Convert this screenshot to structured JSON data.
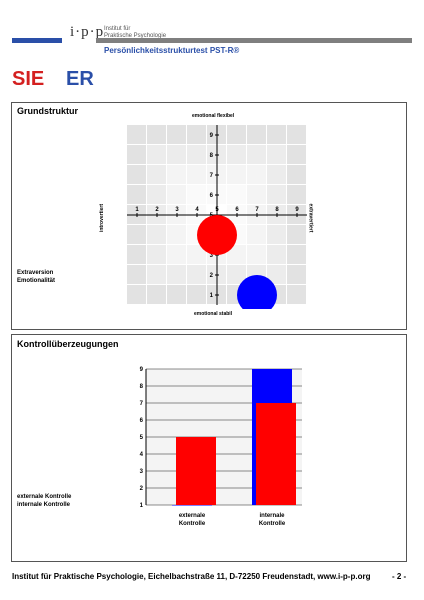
{
  "header": {
    "logo": "i·p·p",
    "logo_line1": "Institut für",
    "logo_line2": "Praktische Psychologie",
    "subtitle": "Persönlichkeitsstrukturtest PST-R®",
    "brand_blue": "#2a4fa8",
    "brand_gray": "#7f7f7f"
  },
  "heading": {
    "sie": "SIE",
    "er": "ER",
    "sie_color": "#d42020",
    "er_color": "#2a4fa8"
  },
  "grundstruktur": {
    "title": "Grundstruktur",
    "top_label": "emotional flexibel",
    "bottom_label": "emotional stabil",
    "left_label": "introvertiert",
    "right_label": "extravertiert",
    "legend_1": "Extraversion",
    "legend_2": "Emotionalität"
  },
  "kontrolle": {
    "title": "Kontrollüberzeugungen",
    "legend_1": "externale Kontrolle",
    "legend_2": "internale Kontrolle"
  },
  "chart_data": [
    {
      "type": "scatter",
      "x_ticks": [
        1,
        2,
        3,
        4,
        5,
        6,
        7,
        8,
        9
      ],
      "y_ticks": [
        1,
        2,
        3,
        4,
        5,
        6,
        7,
        8,
        9
      ],
      "xlim": [
        1,
        9
      ],
      "ylim": [
        1,
        9
      ],
      "series": [
        {
          "name": "SIE",
          "color": "#ff0000",
          "x": 5,
          "y": 4
        },
        {
          "name": "ER",
          "color": "#0000ff",
          "x": 7,
          "y": 1
        }
      ]
    },
    {
      "type": "bar",
      "categories": [
        "externale Kontrolle",
        "internale Kontrolle"
      ],
      "category_lines": [
        [
          "externale",
          "Kontrolle"
        ],
        [
          "internale",
          "Kontrolle"
        ]
      ],
      "ylim": [
        1,
        9
      ],
      "y_ticks": [
        1,
        2,
        3,
        4,
        5,
        6,
        7,
        8,
        9
      ],
      "series": [
        {
          "name": "SIE",
          "color": "#ff0000",
          "values": [
            5,
            7
          ]
        },
        {
          "name": "ER",
          "color": "#0000ff",
          "values": [
            1,
            9
          ]
        }
      ]
    }
  ],
  "footer": {
    "text": "Institut für Praktische Psychologie, Eichelbachstraße 11, D-72250 Freudenstadt, www.i-p-p.org",
    "page": "- 2 -"
  }
}
